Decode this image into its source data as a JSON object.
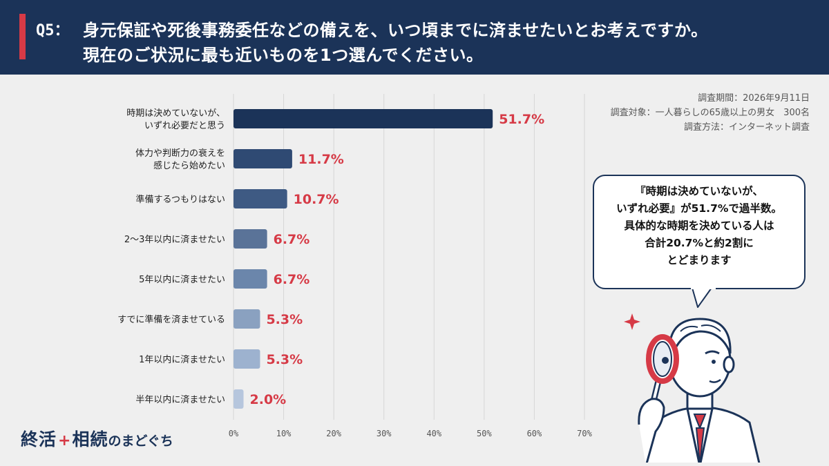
{
  "header": {
    "q_label": "Q5：",
    "question_line1": "身元保証や死後事務委任などの備えを、いつ頃までに済ませたいとお考えですか。",
    "question_line2": "現在のご状況に最も近いものを1つ選んでください。"
  },
  "survey_meta": {
    "period": "調査期間：2026年9月11日",
    "target": "調査対象：一人暮らしの65歳以上の男女　300名",
    "method": "調査方法：インターネット調査"
  },
  "callout": {
    "line1": "『時期は決めていないが、",
    "line2": "いずれ必要』が51.7%で過半数。",
    "line3": "具体的な時期を決めている人は",
    "line4": "合計20.7%と約2割に",
    "line5": "とどまります"
  },
  "logo": {
    "main": "終活",
    "plus": "+",
    "main2": "相続",
    "sub": "のまどぐち"
  },
  "colors": {
    "header_bg": "#1b3358",
    "accent_red": "#d63a46",
    "value_label": "#d63a46",
    "bar_colors": [
      "#1b3358",
      "#2f4a73",
      "#3e5a83",
      "#5a7398",
      "#6b86ab",
      "#8aa1c0",
      "#9db2cf",
      "#b6c6dd"
    ]
  },
  "chart_data": {
    "type": "bar",
    "orientation": "horizontal",
    "categories": [
      [
        "時期は決めていないが、",
        "いずれ必要だと思う"
      ],
      [
        "体力や判断力の衰えを",
        "感じたら始めたい"
      ],
      [
        "準備するつもりはない"
      ],
      [
        "2～3年以内に済ませたい"
      ],
      [
        "5年以内に済ませたい"
      ],
      [
        "すでに準備を済ませている"
      ],
      [
        "1年以内に済ませたい"
      ],
      [
        "半年以内に済ませたい"
      ]
    ],
    "values": [
      51.7,
      11.7,
      10.7,
      6.7,
      6.7,
      5.3,
      5.3,
      2.0
    ],
    "value_labels": [
      "51.7%",
      "11.7%",
      "10.7%",
      "6.7%",
      "6.7%",
      "5.3%",
      "5.3%",
      "2.0%"
    ],
    "x_ticks": [
      "0%",
      "10%",
      "20%",
      "30%",
      "40%",
      "50%",
      "60%",
      "70%"
    ],
    "xlim": [
      0,
      70
    ],
    "grid": true
  }
}
